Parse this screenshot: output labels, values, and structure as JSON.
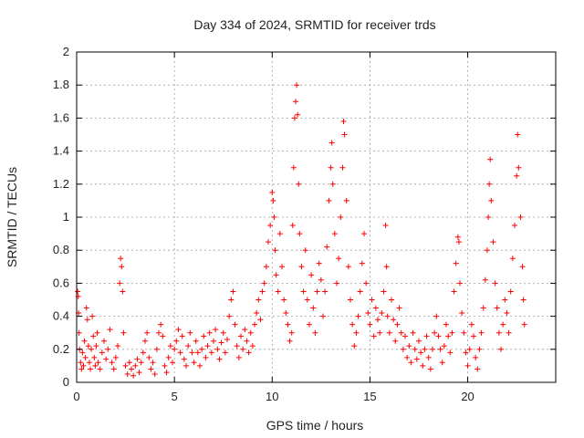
{
  "chart_data": {
    "type": "scatter",
    "title": "Day 334 of 2024, SRMTID for receiver trds",
    "xlabel": "GPS time / hours",
    "ylabel": "SRMTID / TECUs",
    "xlim": [
      0,
      24.5
    ],
    "ylim": [
      0,
      2
    ],
    "xticks": [
      0,
      5,
      10,
      15,
      20
    ],
    "yticks": [
      0,
      0.2,
      0.4,
      0.6,
      0.8,
      1,
      1.2,
      1.4,
      1.6,
      1.8,
      2
    ],
    "xtick_labels": [
      "0",
      "5",
      "10",
      "15",
      "20"
    ],
    "ytick_labels": [
      "0",
      "0.2",
      "0.4",
      "0.6",
      "0.8",
      "1",
      "1.2",
      "1.4",
      "1.6",
      "1.8",
      "2"
    ],
    "grid": true,
    "marker": "+",
    "series_color": "#ff0000",
    "series": [
      {
        "name": "SRMTID",
        "points": [
          [
            0.05,
            0.55
          ],
          [
            0.08,
            0.52
          ],
          [
            0.1,
            0.42
          ],
          [
            0.12,
            0.3
          ],
          [
            0.15,
            0.2
          ],
          [
            0.2,
            0.12
          ],
          [
            0.25,
            0.08
          ],
          [
            0.3,
            0.18
          ],
          [
            0.35,
            0.1
          ],
          [
            0.4,
            0.25
          ],
          [
            0.45,
            0.15
          ],
          [
            0.5,
            0.45
          ],
          [
            0.55,
            0.38
          ],
          [
            0.6,
            0.22
          ],
          [
            0.65,
            0.12
          ],
          [
            0.7,
            0.08
          ],
          [
            0.75,
            0.2
          ],
          [
            0.8,
            0.4
          ],
          [
            0.85,
            0.28
          ],
          [
            0.9,
            0.15
          ],
          [
            0.95,
            0.1
          ],
          [
            1.0,
            0.22
          ],
          [
            1.05,
            0.3
          ],
          [
            1.1,
            0.12
          ],
          [
            1.2,
            0.08
          ],
          [
            1.3,
            0.18
          ],
          [
            1.4,
            0.25
          ],
          [
            1.5,
            0.14
          ],
          [
            1.6,
            0.2
          ],
          [
            1.7,
            0.32
          ],
          [
            1.8,
            0.12
          ],
          [
            1.9,
            0.08
          ],
          [
            2.0,
            0.15
          ],
          [
            2.1,
            0.22
          ],
          [
            2.2,
            0.6
          ],
          [
            2.25,
            0.75
          ],
          [
            2.3,
            0.7
          ],
          [
            2.35,
            0.55
          ],
          [
            2.4,
            0.3
          ],
          [
            2.5,
            0.1
          ],
          [
            2.6,
            0.05
          ],
          [
            2.7,
            0.12
          ],
          [
            2.8,
            0.08
          ],
          [
            2.9,
            0.04
          ],
          [
            3.0,
            0.1
          ],
          [
            3.1,
            0.14
          ],
          [
            3.2,
            0.06
          ],
          [
            3.3,
            0.12
          ],
          [
            3.4,
            0.18
          ],
          [
            3.5,
            0.25
          ],
          [
            3.6,
            0.3
          ],
          [
            3.7,
            0.15
          ],
          [
            3.8,
            0.08
          ],
          [
            3.9,
            0.12
          ],
          [
            4.0,
            0.05
          ],
          [
            4.1,
            0.2
          ],
          [
            4.2,
            0.3
          ],
          [
            4.3,
            0.35
          ],
          [
            4.4,
            0.28
          ],
          [
            4.5,
            0.1
          ],
          [
            4.6,
            0.06
          ],
          [
            4.7,
            0.15
          ],
          [
            4.8,
            0.22
          ],
          [
            4.9,
            0.12
          ],
          [
            5.0,
            0.2
          ],
          [
            5.1,
            0.25
          ],
          [
            5.2,
            0.32
          ],
          [
            5.3,
            0.18
          ],
          [
            5.4,
            0.28
          ],
          [
            5.5,
            0.14
          ],
          [
            5.6,
            0.1
          ],
          [
            5.7,
            0.22
          ],
          [
            5.8,
            0.3
          ],
          [
            5.9,
            0.18
          ],
          [
            6.0,
            0.12
          ],
          [
            6.1,
            0.25
          ],
          [
            6.2,
            0.18
          ],
          [
            6.3,
            0.1
          ],
          [
            6.4,
            0.2
          ],
          [
            6.5,
            0.28
          ],
          [
            6.6,
            0.15
          ],
          [
            6.7,
            0.22
          ],
          [
            6.8,
            0.3
          ],
          [
            6.9,
            0.18
          ],
          [
            7.0,
            0.25
          ],
          [
            7.1,
            0.32
          ],
          [
            7.2,
            0.2
          ],
          [
            7.3,
            0.14
          ],
          [
            7.4,
            0.24
          ],
          [
            7.5,
            0.3
          ],
          [
            7.6,
            0.18
          ],
          [
            7.7,
            0.26
          ],
          [
            7.8,
            0.4
          ],
          [
            7.9,
            0.5
          ],
          [
            8.0,
            0.55
          ],
          [
            8.1,
            0.35
          ],
          [
            8.2,
            0.22
          ],
          [
            8.3,
            0.15
          ],
          [
            8.4,
            0.28
          ],
          [
            8.5,
            0.2
          ],
          [
            8.6,
            0.32
          ],
          [
            8.7,
            0.25
          ],
          [
            8.8,
            0.18
          ],
          [
            8.9,
            0.3
          ],
          [
            9.0,
            0.22
          ],
          [
            9.1,
            0.35
          ],
          [
            9.2,
            0.42
          ],
          [
            9.3,
            0.5
          ],
          [
            9.4,
            0.38
          ],
          [
            9.5,
            0.55
          ],
          [
            9.6,
            0.6
          ],
          [
            9.7,
            0.7
          ],
          [
            9.8,
            0.85
          ],
          [
            9.9,
            0.95
          ],
          [
            10.0,
            1.15
          ],
          [
            10.05,
            1.1
          ],
          [
            10.1,
            1.0
          ],
          [
            10.15,
            0.8
          ],
          [
            10.2,
            0.65
          ],
          [
            10.3,
            0.55
          ],
          [
            10.4,
            0.9
          ],
          [
            10.5,
            0.7
          ],
          [
            10.6,
            0.5
          ],
          [
            10.7,
            0.42
          ],
          [
            10.8,
            0.35
          ],
          [
            10.9,
            0.25
          ],
          [
            11.0,
            0.3
          ],
          [
            11.05,
            0.95
          ],
          [
            11.1,
            1.3
          ],
          [
            11.15,
            1.6
          ],
          [
            11.2,
            1.7
          ],
          [
            11.25,
            1.8
          ],
          [
            11.3,
            1.62
          ],
          [
            11.35,
            1.2
          ],
          [
            11.4,
            0.9
          ],
          [
            11.5,
            0.7
          ],
          [
            11.6,
            0.55
          ],
          [
            11.7,
            0.8
          ],
          [
            11.8,
            0.5
          ],
          [
            11.9,
            0.35
          ],
          [
            12.0,
            0.65
          ],
          [
            12.1,
            0.45
          ],
          [
            12.2,
            0.3
          ],
          [
            12.3,
            0.55
          ],
          [
            12.4,
            0.72
          ],
          [
            12.5,
            0.62
          ],
          [
            12.6,
            0.4
          ],
          [
            12.7,
            0.55
          ],
          [
            12.8,
            0.82
          ],
          [
            12.9,
            1.1
          ],
          [
            13.0,
            1.3
          ],
          [
            13.05,
            1.45
          ],
          [
            13.1,
            1.2
          ],
          [
            13.2,
            0.9
          ],
          [
            13.3,
            0.6
          ],
          [
            13.4,
            0.75
          ],
          [
            13.5,
            1.0
          ],
          [
            13.6,
            1.3
          ],
          [
            13.65,
            1.58
          ],
          [
            13.7,
            1.5
          ],
          [
            13.8,
            1.1
          ],
          [
            13.9,
            0.7
          ],
          [
            14.0,
            0.5
          ],
          [
            14.1,
            0.35
          ],
          [
            14.2,
            0.22
          ],
          [
            14.3,
            0.3
          ],
          [
            14.4,
            0.4
          ],
          [
            14.5,
            0.55
          ],
          [
            14.6,
            0.72
          ],
          [
            14.7,
            0.9
          ],
          [
            14.8,
            0.6
          ],
          [
            14.9,
            0.42
          ],
          [
            15.0,
            0.35
          ],
          [
            15.1,
            0.5
          ],
          [
            15.2,
            0.28
          ],
          [
            15.3,
            0.45
          ],
          [
            15.4,
            0.38
          ],
          [
            15.5,
            0.3
          ],
          [
            15.6,
            0.42
          ],
          [
            15.7,
            0.55
          ],
          [
            15.8,
            0.95
          ],
          [
            15.85,
            0.7
          ],
          [
            15.9,
            0.4
          ],
          [
            16.0,
            0.3
          ],
          [
            16.1,
            0.5
          ],
          [
            16.2,
            0.38
          ],
          [
            16.3,
            0.25
          ],
          [
            16.4,
            0.35
          ],
          [
            16.5,
            0.45
          ],
          [
            16.6,
            0.3
          ],
          [
            16.7,
            0.2
          ],
          [
            16.8,
            0.28
          ],
          [
            16.9,
            0.15
          ],
          [
            17.0,
            0.22
          ],
          [
            17.1,
            0.12
          ],
          [
            17.2,
            0.3
          ],
          [
            17.3,
            0.2
          ],
          [
            17.4,
            0.14
          ],
          [
            17.5,
            0.25
          ],
          [
            17.6,
            0.18
          ],
          [
            17.7,
            0.1
          ],
          [
            17.8,
            0.2
          ],
          [
            17.9,
            0.28
          ],
          [
            18.0,
            0.15
          ],
          [
            18.1,
            0.08
          ],
          [
            18.2,
            0.2
          ],
          [
            18.3,
            0.3
          ],
          [
            18.4,
            0.4
          ],
          [
            18.5,
            0.28
          ],
          [
            18.6,
            0.2
          ],
          [
            18.7,
            0.12
          ],
          [
            18.8,
            0.22
          ],
          [
            18.9,
            0.35
          ],
          [
            19.0,
            0.28
          ],
          [
            19.1,
            0.18
          ],
          [
            19.2,
            0.3
          ],
          [
            19.3,
            0.55
          ],
          [
            19.4,
            0.72
          ],
          [
            19.5,
            0.88
          ],
          [
            19.55,
            0.85
          ],
          [
            19.6,
            0.6
          ],
          [
            19.7,
            0.42
          ],
          [
            19.8,
            0.3
          ],
          [
            19.9,
            0.18
          ],
          [
            20.0,
            0.1
          ],
          [
            20.1,
            0.2
          ],
          [
            20.2,
            0.35
          ],
          [
            20.3,
            0.28
          ],
          [
            20.4,
            0.15
          ],
          [
            20.5,
            0.08
          ],
          [
            20.6,
            0.2
          ],
          [
            20.7,
            0.3
          ],
          [
            20.8,
            0.45
          ],
          [
            20.9,
            0.62
          ],
          [
            21.0,
            0.8
          ],
          [
            21.05,
            1.0
          ],
          [
            21.1,
            1.2
          ],
          [
            21.15,
            1.35
          ],
          [
            21.2,
            1.1
          ],
          [
            21.3,
            0.85
          ],
          [
            21.4,
            0.6
          ],
          [
            21.5,
            0.45
          ],
          [
            21.6,
            0.3
          ],
          [
            21.7,
            0.2
          ],
          [
            21.8,
            0.35
          ],
          [
            21.9,
            0.5
          ],
          [
            22.0,
            0.42
          ],
          [
            22.1,
            0.3
          ],
          [
            22.2,
            0.55
          ],
          [
            22.3,
            0.75
          ],
          [
            22.4,
            0.95
          ],
          [
            22.5,
            1.25
          ],
          [
            22.55,
            1.5
          ],
          [
            22.6,
            1.3
          ],
          [
            22.7,
            1.0
          ],
          [
            22.8,
            0.7
          ],
          [
            22.85,
            0.5
          ],
          [
            22.9,
            0.35
          ]
        ]
      }
    ]
  }
}
